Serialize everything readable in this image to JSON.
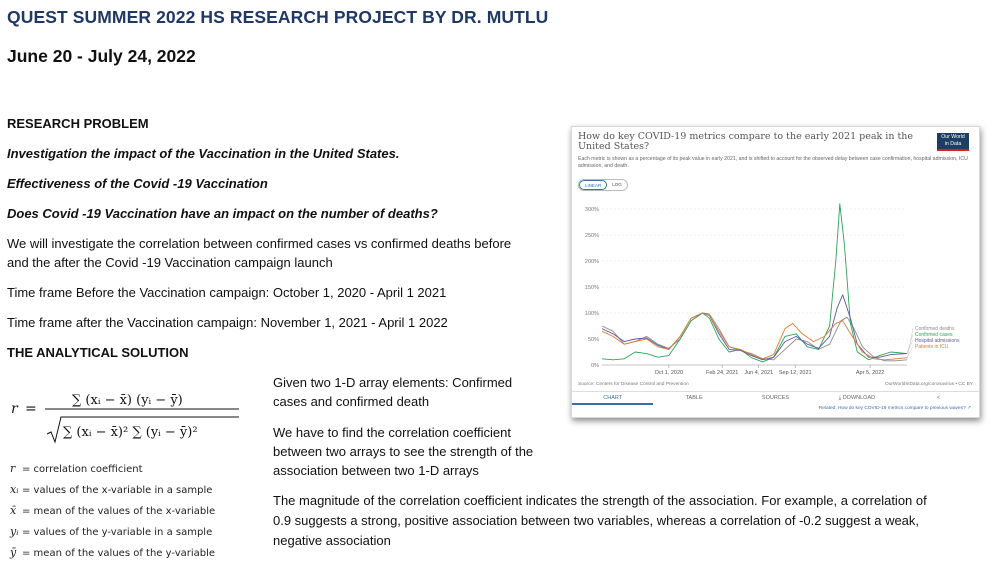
{
  "title": "QUEST SUMMER 2022 HS RESEARCH PROJECT BY DR. MUTLU",
  "dates": "June 20 - July 24, 2022",
  "research_problem_heading": "RESEARCH PROBLEM",
  "q1": "Investigation the impact of the Vaccination in the United States.",
  "q2": "Effectiveness of the Covid -19 Vaccination",
  "q3": "Does Covid -19 Vaccination have an impact on the number of deaths?",
  "para1_line1": "We will investigate the correlation between confirmed cases vs confirmed deaths before",
  "para1_line2": "and the after the Covid -19 Vaccination campaign launch",
  "timeframe_before": "Time frame Before the Vaccination campaign: October 1, 2020 - April 1 2021",
  "timeframe_after": "Time frame after the Vaccination campaign:  November 1, 2021 - April 1 2022",
  "analytical_heading": "THE ANALYTICAL SOLUTION",
  "formula": {
    "lhs": "r",
    "equals": "=",
    "numerator": "∑ (xᵢ − x̄) (yᵢ − ȳ)",
    "denominator": "∑ (xᵢ − x̄)² ∑ (yᵢ − ȳ)²"
  },
  "legend": [
    {
      "symbol": "r",
      "text": "= correlation coefficient"
    },
    {
      "symbol": "xᵢ",
      "text": "= values of the x-variable in a sample"
    },
    {
      "symbol": "x̄",
      "text": "= mean of the values of the x-variable"
    },
    {
      "symbol": "yᵢ",
      "text": "= values of the y-variable in a sample"
    },
    {
      "symbol": "ȳ",
      "text": "= mean of the values of the y-variable"
    }
  ],
  "given_line1": "Given two 1-D array elements: Confirmed",
  "given_line2": "cases and confirmed death",
  "find_line1": "We have to find the correlation coefficient",
  "find_line2": "between two arrays to see the strength of the",
  "find_line3": "association between two 1-D arrays",
  "magnitude_line1": "The magnitude of the correlation coefficient indicates the strength of the association. For example, a correlation of",
  "magnitude_line2": "0.9 suggests a strong, positive association between two variables, whereas a correlation of -0.2 suggest a weak,",
  "magnitude_line3": "negative association",
  "card": {
    "title": "How do key COVID-19 metrics compare to the early 2021 peak in the United States?",
    "subtitle": "Each metric is shown as a percentage of its peak value in early 2021, and is shifted to account for the observed delay between case confirmation, hospital admission, ICU admission, and death.",
    "logo_line1": "Our World",
    "logo_line2": "in Data",
    "toggle_linear": "LINEAR",
    "toggle_log": "LOG",
    "source": "Source: Centers for Disease Control and Prevention",
    "license": "OurWorldInData.org/coronavirus • CC BY",
    "tabs": {
      "chart": "CHART",
      "table": "TABLE",
      "sources": "SOURCES",
      "download": "⤓ DOWNLOAD",
      "share": "<"
    },
    "related": "Related: How do key COVID-19 metrics compare to previous waves? ↗"
  },
  "chart_data": {
    "type": "line",
    "title": "How do key COVID-19 metrics compare to the early 2021 peak in the United States?",
    "ylabel": "",
    "ylim": [
      0,
      300
    ],
    "yticks": [
      0,
      50,
      100,
      150,
      200,
      250,
      300
    ],
    "ytick_labels": [
      "0%",
      "50%",
      "100%",
      "150%",
      "200%",
      "250%",
      "300%"
    ],
    "xticks": [
      "2020-10-01",
      "2021-02-24",
      "2021-06-04",
      "2021-09-12",
      "2022-04-05"
    ],
    "xtick_labels": [
      "Oct 1, 2020",
      "Feb 24, 2021",
      "Jun 4, 2021",
      "Sep 12, 2021",
      "Apr 5, 2022"
    ],
    "xlim": [
      "2020-04-01",
      "2022-07-15"
    ],
    "grid": true,
    "series": [
      {
        "name": "Confirmed deaths",
        "color": "#8c8c8c",
        "x": [
          "2020-04-01",
          "2020-05-01",
          "2020-06-01",
          "2020-07-01",
          "2020-08-01",
          "2020-09-01",
          "2020-10-01",
          "2020-11-01",
          "2020-12-01",
          "2021-01-01",
          "2021-01-20",
          "2021-02-15",
          "2021-03-15",
          "2021-04-15",
          "2021-05-15",
          "2021-06-15",
          "2021-07-15",
          "2021-08-15",
          "2021-09-15",
          "2021-10-15",
          "2021-11-15",
          "2021-12-15",
          "2022-01-15",
          "2022-02-01",
          "2022-02-20",
          "2022-03-15",
          "2022-04-15",
          "2022-05-15",
          "2022-06-15",
          "2022-07-15"
        ],
        "y": [
          75,
          65,
          40,
          45,
          55,
          40,
          32,
          50,
          85,
          100,
          98,
          70,
          35,
          28,
          22,
          12,
          10,
          30,
          50,
          45,
          30,
          40,
          85,
          92,
          70,
          35,
          15,
          8,
          8,
          10
        ]
      },
      {
        "name": "Confirmed cases",
        "color": "#2ea35a",
        "x": [
          "2020-04-01",
          "2020-05-01",
          "2020-06-01",
          "2020-07-01",
          "2020-08-01",
          "2020-09-01",
          "2020-10-01",
          "2020-11-01",
          "2020-12-01",
          "2021-01-01",
          "2021-01-20",
          "2021-02-15",
          "2021-03-15",
          "2021-04-15",
          "2021-05-15",
          "2021-06-15",
          "2021-07-15",
          "2021-08-15",
          "2021-09-15",
          "2021-10-15",
          "2021-11-15",
          "2021-12-15",
          "2022-01-01",
          "2022-01-12",
          "2022-01-25",
          "2022-02-10",
          "2022-03-01",
          "2022-04-01",
          "2022-05-01",
          "2022-06-01",
          "2022-07-15"
        ],
        "y": [
          12,
          10,
          12,
          25,
          22,
          15,
          18,
          50,
          85,
          100,
          90,
          50,
          25,
          30,
          14,
          6,
          15,
          55,
          60,
          35,
          30,
          75,
          200,
          310,
          230,
          80,
          25,
          10,
          18,
          25,
          22
        ]
      },
      {
        "name": "Hospital admissions",
        "color": "#5a5aa6",
        "x": [
          "2020-04-01",
          "2020-05-01",
          "2020-06-01",
          "2020-07-01",
          "2020-08-01",
          "2020-09-01",
          "2020-10-01",
          "2020-11-01",
          "2020-12-01",
          "2021-01-01",
          "2021-01-20",
          "2021-02-15",
          "2021-03-15",
          "2021-04-15",
          "2021-05-15",
          "2021-06-15",
          "2021-07-15",
          "2021-08-15",
          "2021-09-15",
          "2021-10-15",
          "2021-11-15",
          "2021-12-15",
          "2022-01-05",
          "2022-01-20",
          "2022-02-10",
          "2022-03-01",
          "2022-04-01",
          "2022-05-01",
          "2022-06-01",
          "2022-07-15"
        ],
        "y": [
          70,
          60,
          45,
          50,
          52,
          38,
          30,
          55,
          90,
          100,
          95,
          60,
          30,
          28,
          18,
          10,
          15,
          45,
          55,
          40,
          32,
          55,
          110,
          135,
          90,
          40,
          15,
          15,
          20,
          22
        ]
      },
      {
        "name": "Patients in ICU",
        "color": "#e07b2e",
        "x": [
          "2020-04-01",
          "2020-05-01",
          "2020-06-01",
          "2020-07-01",
          "2020-08-01",
          "2020-09-01",
          "2020-10-01",
          "2020-11-01",
          "2020-12-01",
          "2021-01-01",
          "2021-01-20",
          "2021-02-15",
          "2021-03-15",
          "2021-04-15",
          "2021-05-15",
          "2021-06-15",
          "2021-07-15",
          "2021-08-15",
          "2021-09-05",
          "2021-10-01",
          "2021-11-01",
          "2021-12-01",
          "2022-01-01",
          "2022-01-20",
          "2022-02-15",
          "2022-03-15",
          "2022-04-15",
          "2022-05-15",
          "2022-06-15",
          "2022-07-15"
        ],
        "y": [
          65,
          55,
          40,
          45,
          50,
          35,
          30,
          55,
          90,
          100,
          95,
          65,
          35,
          30,
          20,
          12,
          20,
          70,
          80,
          60,
          45,
          55,
          80,
          85,
          55,
          25,
          12,
          10,
          12,
          14
        ]
      }
    ]
  }
}
